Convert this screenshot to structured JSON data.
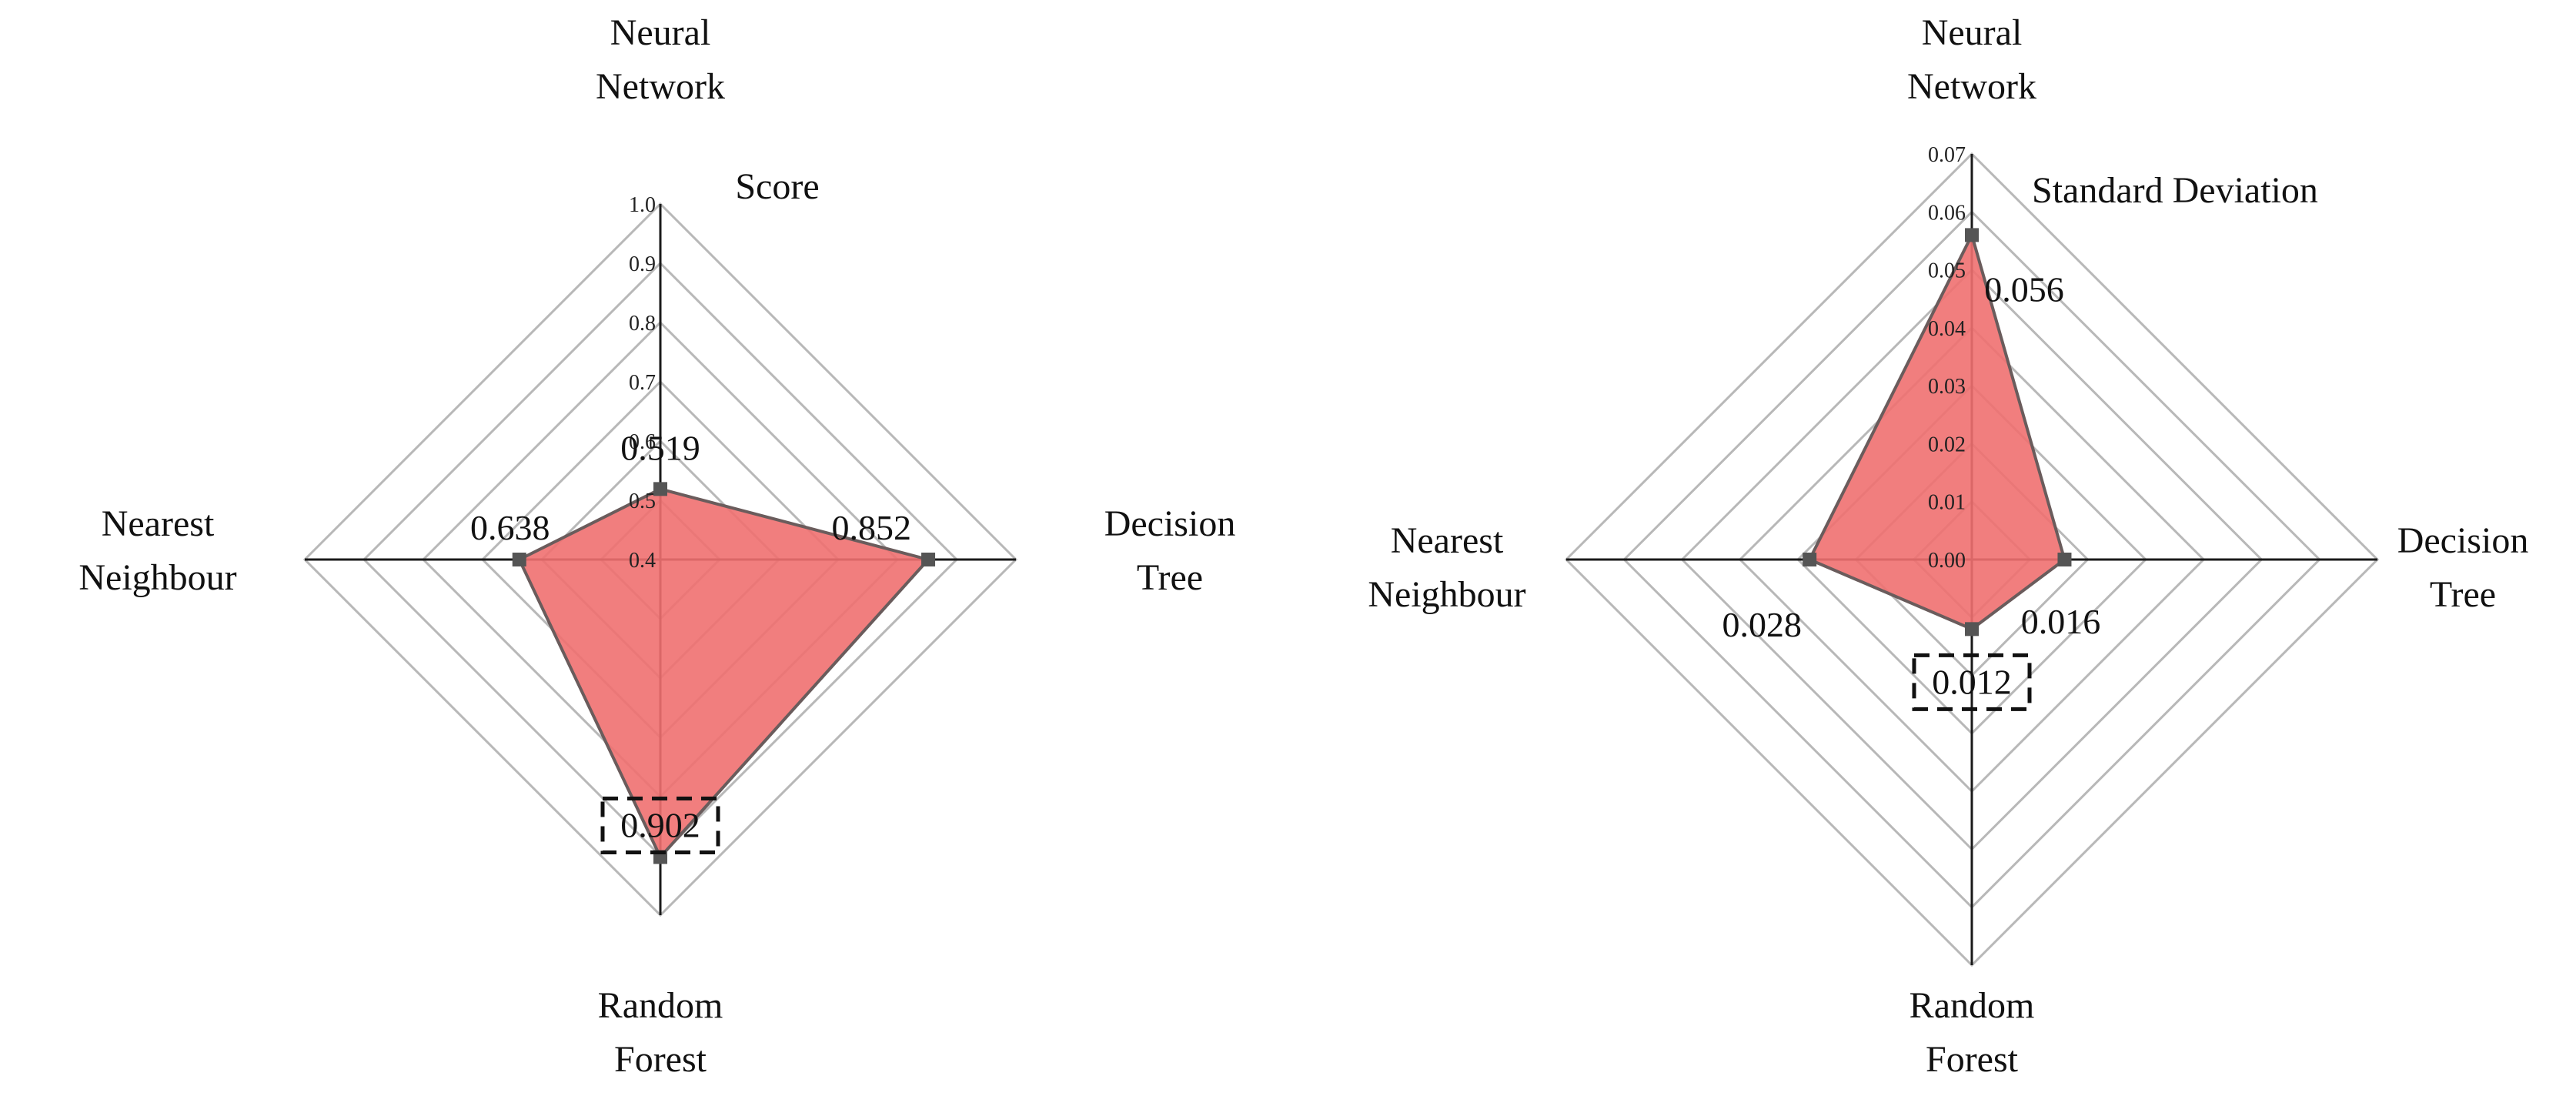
{
  "chart_data": [
    {
      "type": "radar",
      "title": "Score",
      "axes": [
        "Neural Network",
        "Decision Tree",
        "Random Forest",
        "Nearest Neighbour"
      ],
      "axis_label_lines": [
        [
          "Neural",
          "Network"
        ],
        [
          "Decision",
          "Tree"
        ],
        [
          "Random",
          "Forest"
        ],
        [
          "Nearest",
          "Neighbour"
        ]
      ],
      "range": [
        0.4,
        1.0
      ],
      "ticks": [
        "0.4",
        "0.5",
        "0.6",
        "0.7",
        "0.8",
        "0.9",
        "1.0"
      ],
      "values": [
        0.519,
        0.852,
        0.902,
        0.638
      ],
      "data_labels": [
        "0.519",
        "0.852",
        "0.902",
        "0.638"
      ],
      "highlighted_label": "0.902",
      "fill_color": "#f07070",
      "grid": true
    },
    {
      "type": "radar",
      "title": "Standard Deviation",
      "axes": [
        "Neural Network",
        "Decision Tree",
        "Random Forest",
        "Nearest Neighbour"
      ],
      "axis_label_lines": [
        [
          "Neural",
          "Network"
        ],
        [
          "Decision",
          "Tree"
        ],
        [
          "Random",
          "Forest"
        ],
        [
          "Nearest",
          "Neighbour"
        ]
      ],
      "range": [
        0.0,
        0.07
      ],
      "ticks": [
        "0.00",
        "0.01",
        "0.02",
        "0.03",
        "0.04",
        "0.05",
        "0.06",
        "0.07"
      ],
      "values": [
        0.056,
        0.016,
        0.012,
        0.028
      ],
      "data_labels": [
        "0.056",
        "0.016",
        "0.012",
        "0.028"
      ],
      "highlighted_label": "0.012",
      "fill_color": "#f07070",
      "grid": true
    }
  ]
}
